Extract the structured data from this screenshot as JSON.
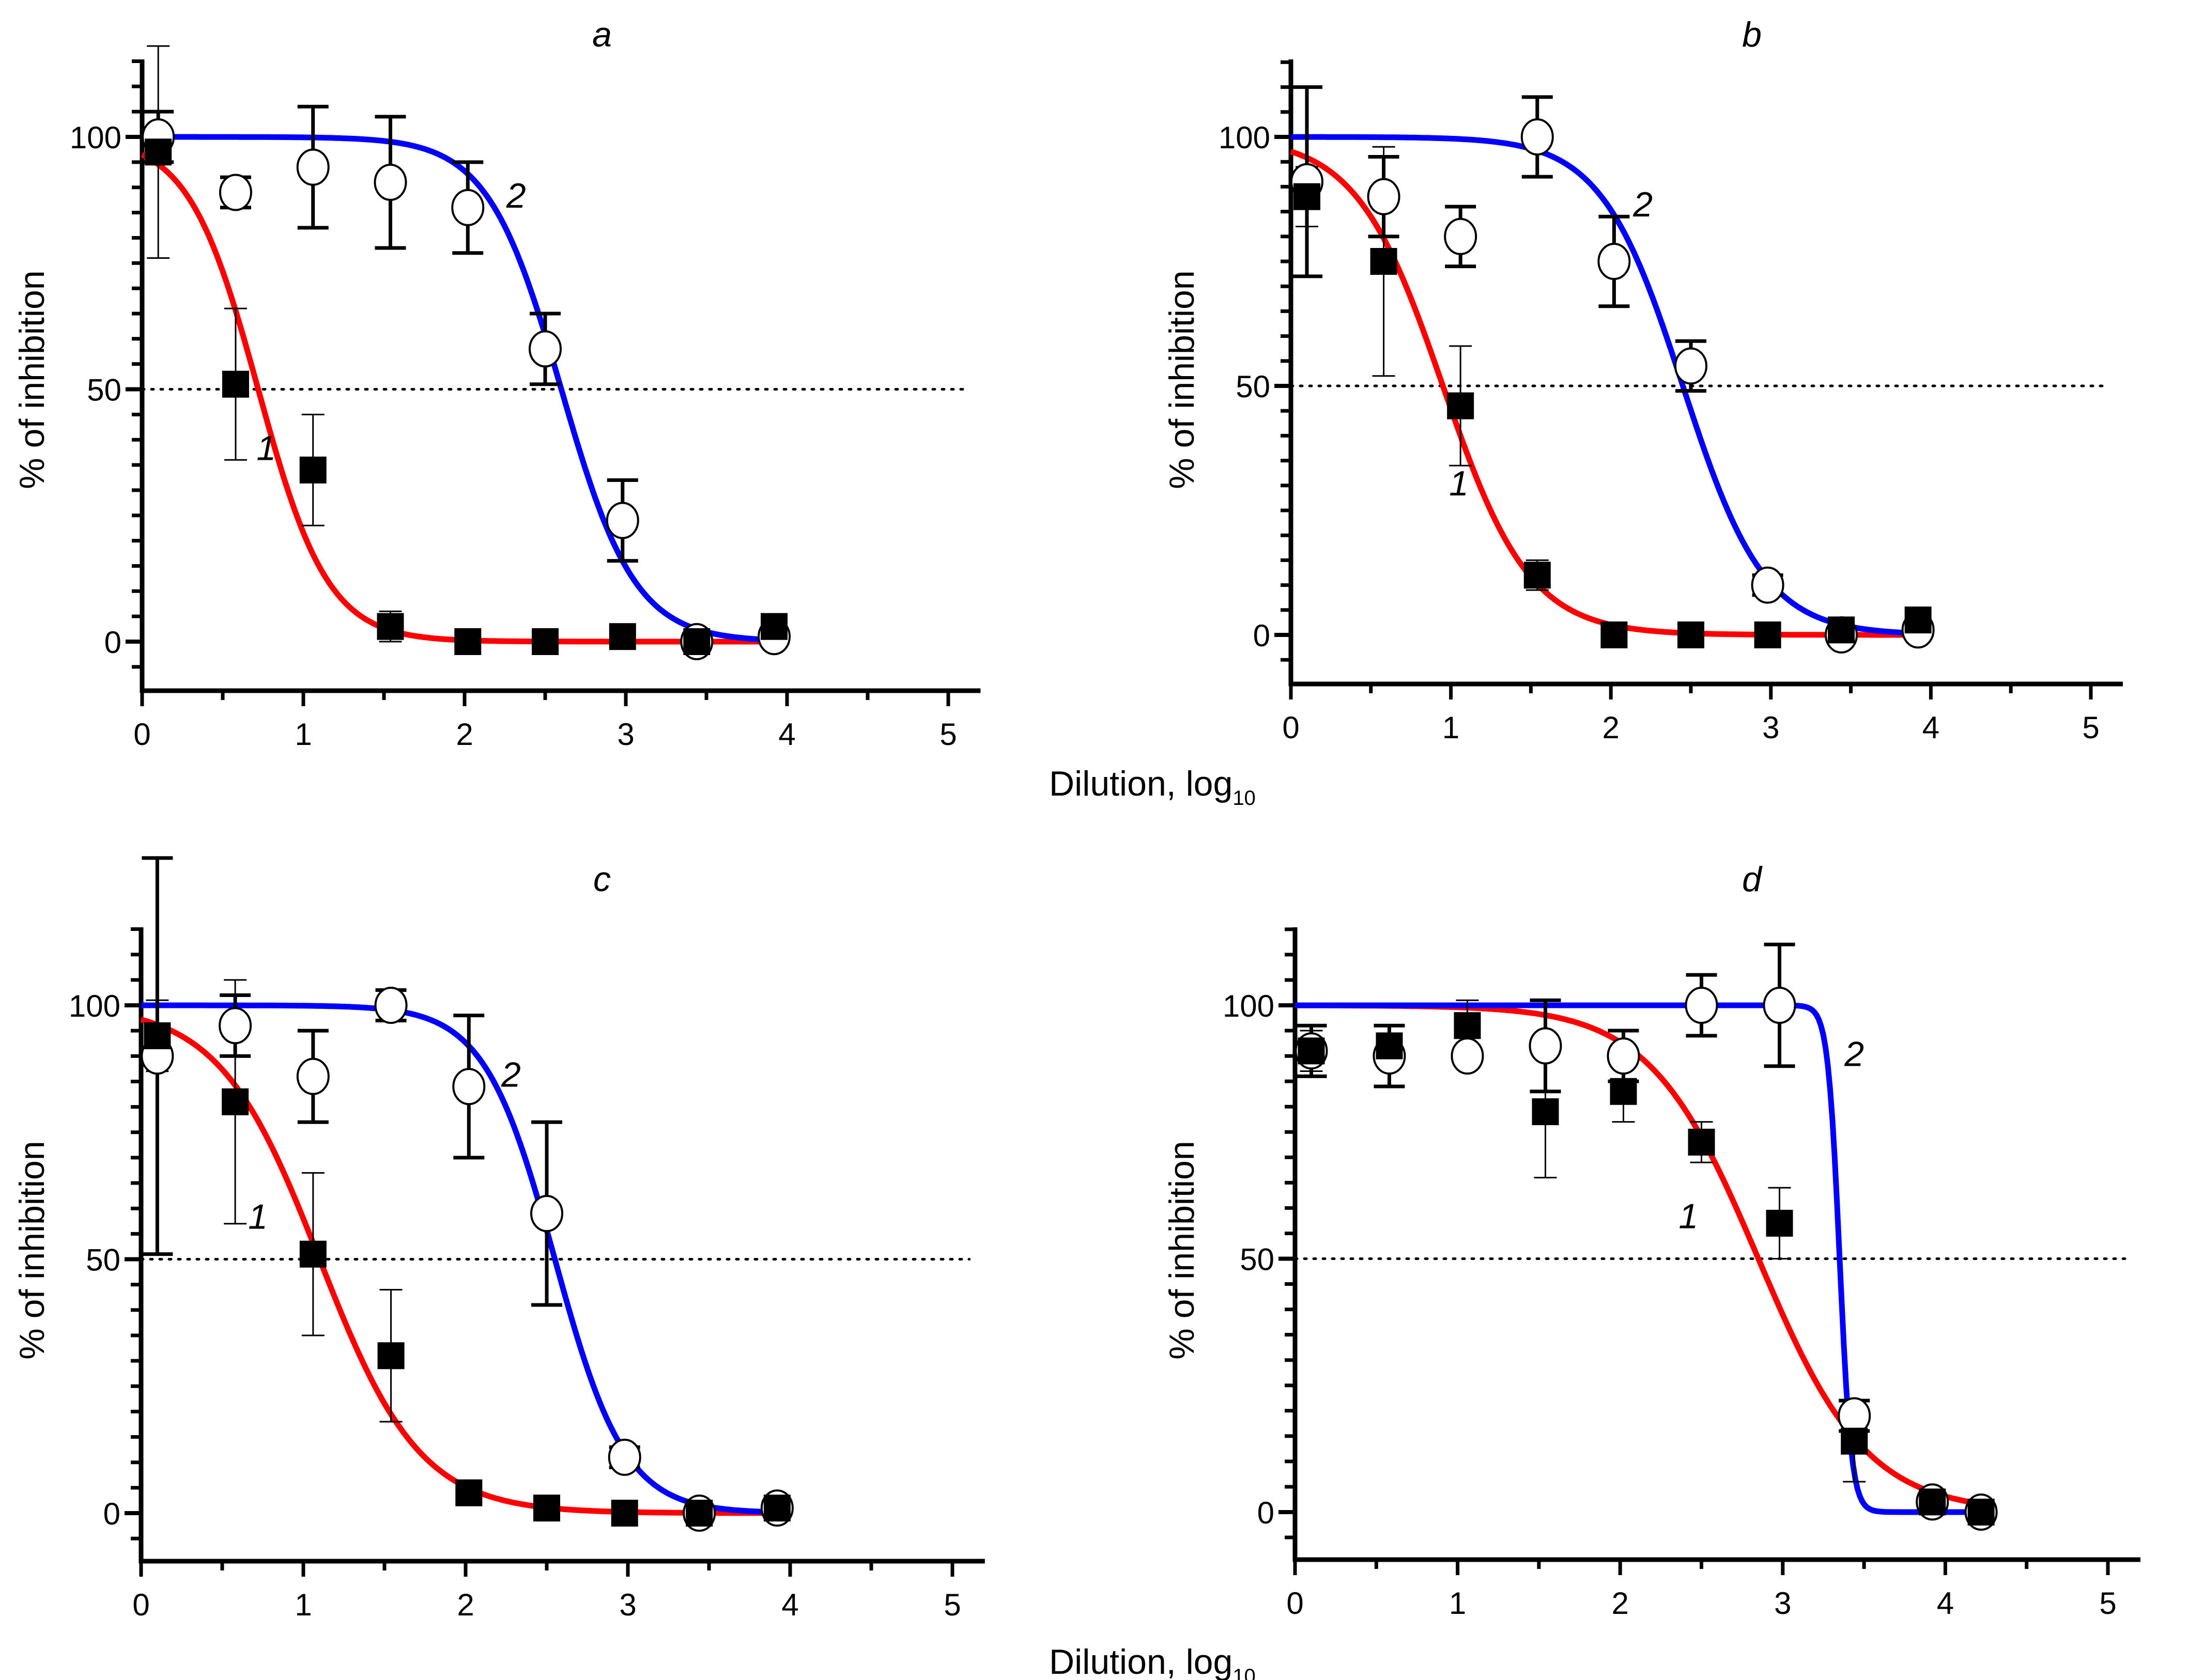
{
  "figure": {
    "xlabel_main": "Dilution, log",
    "xlabel_sub": "10",
    "ylabel": "% of inhibition"
  },
  "colors": {
    "series1": "#ff0000",
    "series2": "#0000ff",
    "marker": "#000000",
    "reference_line": "#000000"
  },
  "chart_data": [
    {
      "type": "scatter",
      "title": "a",
      "xlabel": "Dilution, log10",
      "ylabel": "% of inhibition",
      "xlim": [
        0,
        5.2
      ],
      "ylim": [
        -10,
        115
      ],
      "xticks": [
        "0",
        "1",
        "2",
        "3",
        "4",
        "5"
      ],
      "yticks": [
        "0",
        "50",
        "100"
      ],
      "reference_line_y": 50,
      "series": [
        {
          "name": "1",
          "marker": "filled-square",
          "x": [
            0.1,
            0.58,
            1.06,
            1.54,
            2.02,
            2.5,
            2.98,
            3.44,
            3.92
          ],
          "y": [
            97,
            51,
            34,
            3,
            0,
            0,
            1,
            0,
            3
          ],
          "err": [
            21,
            15,
            11,
            3,
            0,
            0,
            0,
            0,
            1
          ],
          "fit": {
            "top": 100,
            "bottom": 0,
            "log_ic50": 0.72,
            "hill": 2.0,
            "x_range": [
              0,
              3.92
            ]
          }
        },
        {
          "name": "2",
          "marker": "open-circle",
          "x": [
            0.1,
            0.58,
            1.06,
            1.54,
            2.02,
            2.5,
            2.98,
            3.44,
            3.92
          ],
          "y": [
            100,
            89,
            94,
            91,
            86,
            58,
            24,
            0,
            1
          ],
          "err": [
            5,
            3,
            12,
            13,
            9,
            7,
            8,
            0,
            1
          ],
          "fit": {
            "top": 100,
            "bottom": 0,
            "log_ic50": 2.6,
            "hill": 1.9,
            "x_range": [
              0,
              3.92
            ]
          }
        }
      ],
      "curve_labels": [
        {
          "text": "1",
          "x": 0.77,
          "y": 36
        },
        {
          "text": "2",
          "x": 2.32,
          "y": 86
        }
      ]
    },
    {
      "type": "scatter",
      "title": "b",
      "xlabel": "Dilution, log10",
      "ylabel": "% of inhibition",
      "xlim": [
        0,
        5.2
      ],
      "ylim": [
        -10,
        115
      ],
      "xticks": [
        "0",
        "1",
        "2",
        "3",
        "4",
        "5"
      ],
      "yticks": [
        "0",
        "50",
        "100"
      ],
      "reference_line_y": 50,
      "series": [
        {
          "name": "1",
          "marker": "filled-square",
          "x": [
            0.1,
            0.58,
            1.06,
            1.54,
            2.02,
            2.5,
            2.98,
            3.44,
            3.92
          ],
          "y": [
            88,
            75,
            46,
            12,
            0,
            0,
            0,
            1,
            3
          ],
          "err": [
            6,
            23,
            12,
            3,
            0,
            0,
            0,
            0,
            1
          ],
          "fit": {
            "top": 100,
            "bottom": 0,
            "log_ic50": 0.95,
            "hill": 1.6,
            "x_range": [
              0,
              3.92
            ]
          }
        },
        {
          "name": "2",
          "marker": "open-circle",
          "x": [
            0.1,
            0.58,
            1.06,
            1.54,
            2.02,
            2.5,
            2.98,
            3.44,
            3.92
          ],
          "y": [
            91,
            88,
            80,
            100,
            75,
            54,
            10,
            0,
            1
          ],
          "err": [
            19,
            8,
            6,
            8,
            9,
            5,
            2,
            0,
            1
          ],
          "fit": {
            "top": 100,
            "bottom": 0,
            "log_ic50": 2.45,
            "hill": 1.7,
            "x_range": [
              0,
              3.92
            ]
          }
        }
      ],
      "curve_labels": [
        {
          "text": "1",
          "x": 1.05,
          "y": 28
        },
        {
          "text": "2",
          "x": 2.2,
          "y": 84
        }
      ]
    },
    {
      "type": "scatter",
      "title": "c",
      "xlabel": "Dilution, log10",
      "ylabel": "% of inhibition",
      "xlim": [
        0,
        5.2
      ],
      "ylim": [
        -10,
        115
      ],
      "xticks": [
        "0",
        "1",
        "2",
        "3",
        "4",
        "5"
      ],
      "yticks": [
        "0",
        "50",
        "100"
      ],
      "reference_line_y": 50,
      "series": [
        {
          "name": "1",
          "marker": "filled-square",
          "x": [
            0.1,
            0.58,
            1.06,
            1.54,
            2.02,
            2.5,
            2.98,
            3.44,
            3.92
          ],
          "y": [
            94,
            81,
            51,
            31,
            4,
            1,
            0,
            0,
            1
          ],
          "err": [
            7,
            24,
            16,
            13,
            0,
            0,
            0,
            0,
            0
          ],
          "fit": {
            "top": 100,
            "bottom": 0,
            "log_ic50": 1.1,
            "hill": 1.4,
            "x_range": [
              0,
              3.92
            ]
          }
        },
        {
          "name": "2",
          "marker": "open-circle",
          "x": [
            0.1,
            0.58,
            1.06,
            1.54,
            2.02,
            2.5,
            2.98,
            3.44,
            3.92
          ],
          "y": [
            90,
            96,
            86,
            100,
            84,
            59,
            11,
            0,
            1
          ],
          "err": [
            39,
            6,
            9,
            3,
            14,
            18,
            2,
            0,
            0
          ],
          "fit": {
            "top": 100,
            "bottom": 0,
            "log_ic50": 2.55,
            "hill": 2.0,
            "x_range": [
              0,
              3.92
            ]
          }
        }
      ],
      "curve_labels": [
        {
          "text": "1",
          "x": 0.72,
          "y": 56
        },
        {
          "text": "2",
          "x": 2.28,
          "y": 84
        }
      ]
    },
    {
      "type": "scatter",
      "title": "d",
      "xlabel": "Dilution, log10",
      "ylabel": "% of inhibition",
      "xlim": [
        0,
        5.2
      ],
      "ylim": [
        -10,
        115
      ],
      "xticks": [
        "0",
        "1",
        "2",
        "3",
        "4",
        "5"
      ],
      "yticks": [
        "0",
        "50",
        "100"
      ],
      "reference_line_y": 50,
      "series": [
        {
          "name": "1",
          "marker": "filled-square",
          "x": [
            0.1,
            0.58,
            1.06,
            1.54,
            2.02,
            2.5,
            2.98,
            3.44,
            3.92,
            4.22
          ],
          "y": [
            91,
            92,
            96,
            79,
            83,
            73,
            57,
            14,
            2,
            0
          ],
          "err": [
            4,
            4,
            5,
            13,
            6,
            4,
            7,
            8,
            0,
            0
          ],
          "fit": {
            "top": 100,
            "bottom": 0,
            "log_ic50": 2.85,
            "hill": 1.3,
            "x_range": [
              0,
              4.22
            ]
          }
        },
        {
          "name": "2",
          "marker": "open-circle",
          "x": [
            0.1,
            0.58,
            1.06,
            1.54,
            2.02,
            2.5,
            2.98,
            3.44,
            3.92,
            4.22
          ],
          "y": [
            91,
            90,
            90,
            92,
            90,
            100,
            100,
            19,
            2,
            0
          ],
          "err": [
            5,
            6,
            0,
            9,
            5,
            6,
            12,
            3,
            0,
            0
          ],
          "fit": {
            "top": 100,
            "bottom": 0,
            "log_ic50": 3.35,
            "hill": 12.0,
            "x_range": [
              0,
              4.22
            ]
          }
        }
      ],
      "curve_labels": [
        {
          "text": "1",
          "x": 2.42,
          "y": 56
        },
        {
          "text": "2",
          "x": 3.44,
          "y": 88
        }
      ]
    }
  ]
}
